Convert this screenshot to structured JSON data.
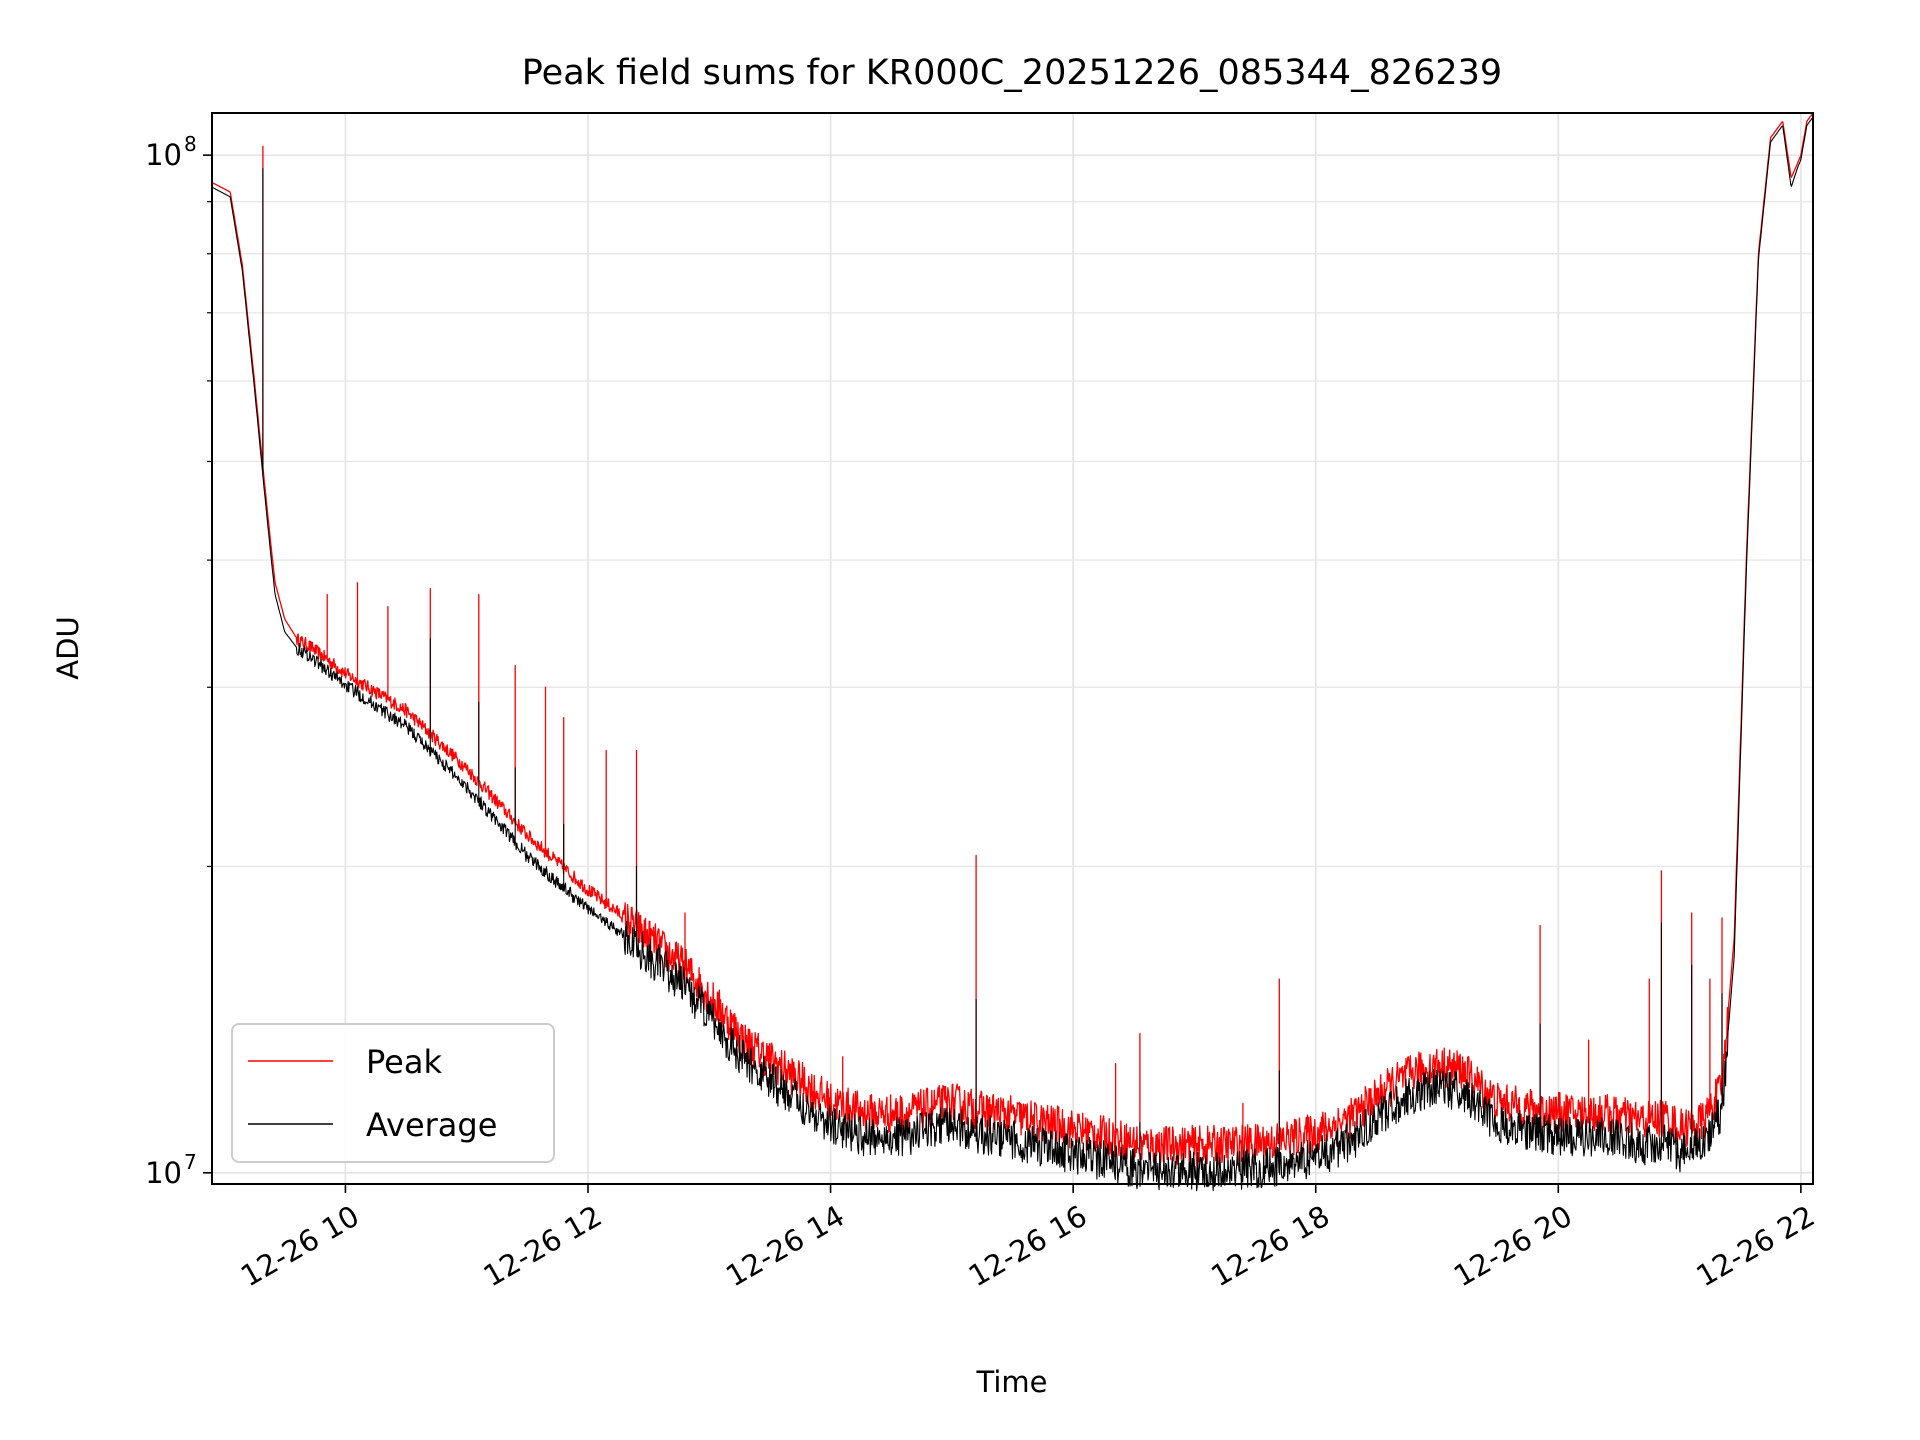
{
  "chart_data": {
    "type": "line",
    "title": "Peak field sums for KR000C_20251226_085344_826239",
    "xlabel": "Time",
    "ylabel": "ADU",
    "yscale": "log",
    "xlim": [
      8.9,
      22.1
    ],
    "ylim": [
      9750000.0,
      110000000.0
    ],
    "grid": true,
    "legend_position": "lower-left",
    "x_ticks": [
      10,
      12,
      14,
      16,
      18,
      20,
      22
    ],
    "x_tick_labels": [
      "12-26 10",
      "12-26 12",
      "12-26 14",
      "12-26 16",
      "12-26 18",
      "12-26 20",
      "12-26 22"
    ],
    "y_major_ticks": [
      {
        "value": 10000000,
        "base": "10",
        "exp": "7"
      },
      {
        "value": 100000000,
        "base": "10",
        "exp": "8"
      }
    ],
    "y_minor_ticks": [
      20000000,
      30000000,
      40000000,
      50000000,
      60000000,
      70000000,
      80000000,
      90000000
    ],
    "series": [
      {
        "name": "Peak",
        "color": "#ff0000",
        "x": [
          8.9,
          9.05,
          9.15,
          9.25,
          9.33,
          9.38,
          9.42,
          9.5,
          9.6,
          9.7,
          9.85,
          10.0,
          10.5,
          11.0,
          11.5,
          12.0,
          12.4,
          12.8,
          13.0,
          13.3,
          13.7,
          14.0,
          14.3,
          14.6,
          15.0,
          15.2,
          15.4,
          15.7,
          16.0,
          16.3,
          16.6,
          17.0,
          17.3,
          17.7,
          18.0,
          18.3,
          18.6,
          18.8,
          19.0,
          19.2,
          19.5,
          19.8,
          20.1,
          20.4,
          20.7,
          20.9,
          21.0,
          21.2,
          21.35,
          21.45,
          21.55,
          21.65,
          21.75,
          21.85,
          21.92,
          21.97,
          22.0,
          22.05,
          22.1
        ],
        "y": [
          94000000,
          92000000,
          78000000,
          60000000,
          48000000,
          42000000,
          38000000,
          35000000,
          33500000,
          33000000,
          32000000,
          31000000,
          28500000,
          25000000,
          21500000,
          19000000,
          17500000,
          16000000,
          15000000,
          13500000,
          12500000,
          11800000,
          11500000,
          11500000,
          11800000,
          11600000,
          11500000,
          11300000,
          11100000,
          10900000,
          10700000,
          10700000,
          10700000,
          10800000,
          11000000,
          11400000,
          12200000,
          12600000,
          12800000,
          12700000,
          11800000,
          11600000,
          11500000,
          11500000,
          11300000,
          11400000,
          11100000,
          11300000,
          12200000,
          17000000,
          40000000,
          80000000,
          104000000,
          108000000,
          95000000,
          98000000,
          100000000,
          108000000,
          110000000
        ],
        "spikes": [
          {
            "x": 9.32,
            "y": 102000000
          },
          {
            "x": 9.85,
            "y": 37000000
          },
          {
            "x": 10.1,
            "y": 38000000
          },
          {
            "x": 10.35,
            "y": 36000000
          },
          {
            "x": 10.7,
            "y": 37500000
          },
          {
            "x": 11.1,
            "y": 37000000
          },
          {
            "x": 11.4,
            "y": 31500000
          },
          {
            "x": 11.65,
            "y": 30000000
          },
          {
            "x": 11.8,
            "y": 28000000
          },
          {
            "x": 12.15,
            "y": 26000000
          },
          {
            "x": 12.4,
            "y": 26000000
          },
          {
            "x": 12.8,
            "y": 18000000
          },
          {
            "x": 14.1,
            "y": 13000000
          },
          {
            "x": 15.2,
            "y": 20500000
          },
          {
            "x": 16.35,
            "y": 12800000
          },
          {
            "x": 16.55,
            "y": 13700000
          },
          {
            "x": 17.4,
            "y": 11700000
          },
          {
            "x": 17.7,
            "y": 15500000
          },
          {
            "x": 19.85,
            "y": 17500000
          },
          {
            "x": 20.25,
            "y": 13500000
          },
          {
            "x": 20.75,
            "y": 15500000
          },
          {
            "x": 20.85,
            "y": 19800000
          },
          {
            "x": 21.1,
            "y": 18000000
          },
          {
            "x": 21.25,
            "y": 15500000
          },
          {
            "x": 21.35,
            "y": 17800000
          }
        ]
      },
      {
        "name": "Average",
        "color": "#000000",
        "x": [
          8.9,
          9.05,
          9.15,
          9.25,
          9.33,
          9.38,
          9.42,
          9.5,
          9.6,
          9.7,
          9.85,
          10.0,
          10.5,
          11.0,
          11.5,
          12.0,
          12.4,
          12.8,
          13.0,
          13.3,
          13.7,
          14.0,
          14.3,
          14.6,
          15.0,
          15.2,
          15.4,
          15.7,
          16.0,
          16.3,
          16.6,
          17.0,
          17.3,
          17.7,
          18.0,
          18.3,
          18.6,
          18.8,
          19.0,
          19.2,
          19.5,
          19.8,
          20.1,
          20.4,
          20.7,
          20.9,
          21.0,
          21.2,
          21.35,
          21.45,
          21.55,
          21.65,
          21.75,
          21.85,
          21.92,
          21.97,
          22.0,
          22.05,
          22.1
        ],
        "y": [
          93000000,
          91000000,
          77000000,
          59000000,
          47000000,
          41000000,
          37000000,
          34000000,
          32800000,
          32300000,
          31200000,
          30200000,
          27500000,
          24000000,
          20500000,
          18200000,
          16800000,
          15300000,
          14300000,
          12900000,
          11900000,
          11200000,
          10900000,
          10900000,
          11200000,
          11000000,
          10900000,
          10700000,
          10500000,
          10300000,
          10100000,
          10100000,
          10100000,
          10200000,
          10400000,
          10800000,
          11600000,
          12000000,
          12200000,
          12100000,
          11200000,
          11000000,
          10900000,
          10900000,
          10700000,
          10800000,
          10500000,
          10700000,
          11600000,
          16300000,
          39000000,
          79000000,
          103000000,
          107000000,
          93000000,
          97000000,
          99000000,
          107000000,
          109000000
        ],
        "spikes": [
          {
            "x": 9.32,
            "y": 97000000
          },
          {
            "x": 10.7,
            "y": 33500000
          },
          {
            "x": 11.1,
            "y": 29000000
          },
          {
            "x": 11.4,
            "y": 25000000
          },
          {
            "x": 11.8,
            "y": 22000000
          },
          {
            "x": 12.4,
            "y": 20000000
          },
          {
            "x": 15.2,
            "y": 14800000
          },
          {
            "x": 16.55,
            "y": 11200000
          },
          {
            "x": 17.7,
            "y": 12600000
          },
          {
            "x": 19.85,
            "y": 14000000
          },
          {
            "x": 20.85,
            "y": 17600000
          },
          {
            "x": 21.1,
            "y": 16000000
          },
          {
            "x": 21.35,
            "y": 15000000
          }
        ]
      }
    ]
  }
}
